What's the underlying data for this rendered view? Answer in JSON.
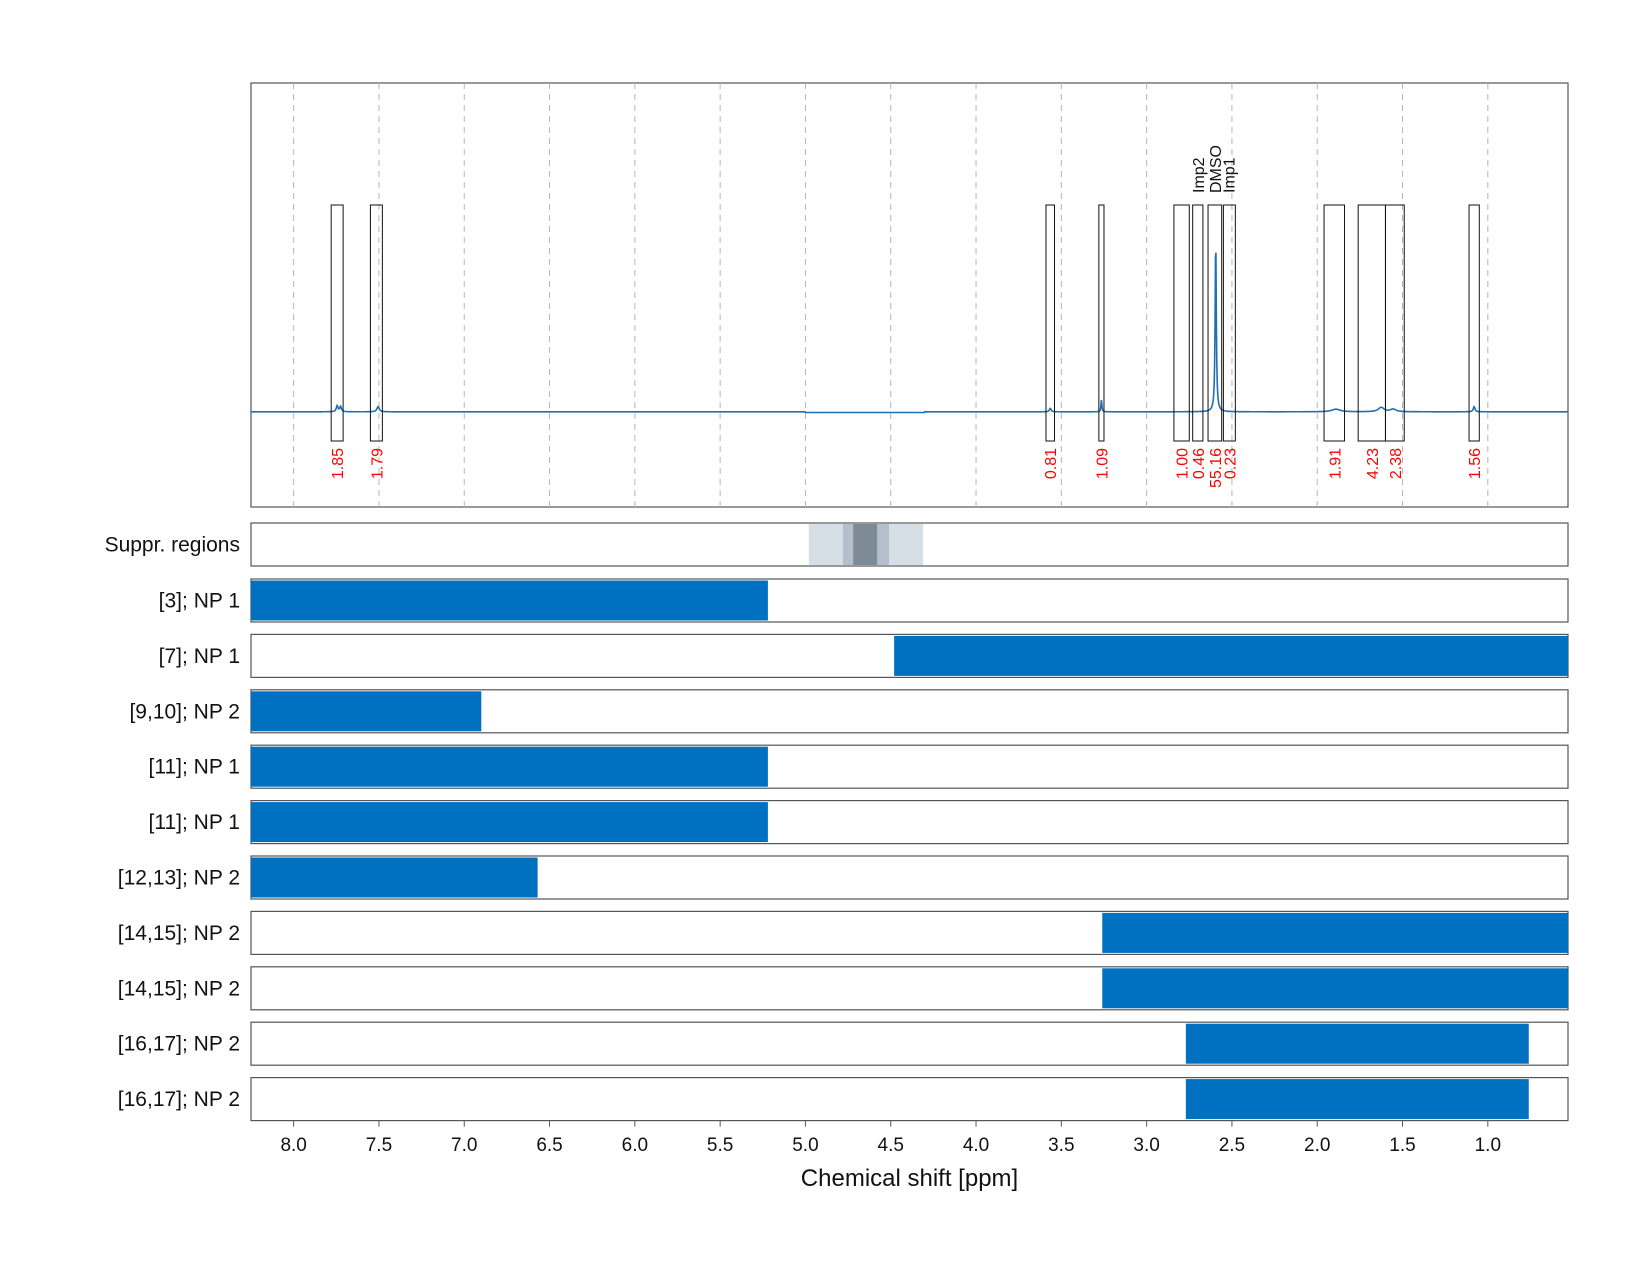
{
  "chart_data": {
    "type": "nmr-spectrum-with-region-bars",
    "xlabel": "Chemical shift [ppm]",
    "xlim": [
      8.25,
      0.53
    ],
    "x_ticks": [
      8.0,
      7.5,
      7.0,
      6.5,
      6.0,
      5.5,
      5.0,
      4.5,
      4.0,
      3.5,
      3.0,
      2.5,
      2.0,
      1.5,
      1.0
    ],
    "x_tick_labels": [
      "8.0",
      "7.5",
      "7.0",
      "6.5",
      "6.0",
      "5.5",
      "5.0",
      "4.5",
      "4.0",
      "3.5",
      "3.0",
      "2.5",
      "2.0",
      "1.5",
      "1.0"
    ],
    "grid": "vertical dashed",
    "colors": {
      "spectrum": "#1f6fb4",
      "integral_label": "#ff0000",
      "bar": "#0070c0",
      "suppression": "#d6dee6",
      "suppression_mid": "#b3c0cc",
      "suppression_core": "#7d8b97"
    },
    "spectrum": {
      "baseline": 0.0,
      "ylim": [
        -0.55,
        1.9
      ],
      "peaks": [
        {
          "ppm": 7.745,
          "height": 0.035,
          "width": 0.006
        },
        {
          "ppm": 7.725,
          "height": 0.03,
          "width": 0.006
        },
        {
          "ppm": 7.505,
          "height": 0.03,
          "width": 0.008
        },
        {
          "ppm": 3.565,
          "height": 0.02,
          "width": 0.006
        },
        {
          "ppm": 3.265,
          "height": 0.07,
          "width": 0.003
        },
        {
          "ppm": 2.595,
          "height": 1.0,
          "width": 0.004
        },
        {
          "ppm": 1.89,
          "height": 0.015,
          "width": 0.03
        },
        {
          "ppm": 1.625,
          "height": 0.025,
          "width": 0.02
        },
        {
          "ppm": 1.555,
          "height": 0.015,
          "width": 0.02
        },
        {
          "ppm": 1.08,
          "height": 0.03,
          "width": 0.006
        }
      ]
    },
    "integral_regions": [
      {
        "start": 7.78,
        "end": 7.71,
        "value": "1.85"
      },
      {
        "start": 7.55,
        "end": 7.48,
        "value": "1.79"
      },
      {
        "start": 3.59,
        "end": 3.54,
        "value": "0.81"
      },
      {
        "start": 3.28,
        "end": 3.25,
        "value": "1.09"
      },
      {
        "start": 2.84,
        "end": 2.75,
        "value": "1.00"
      },
      {
        "start": 2.73,
        "end": 2.67,
        "value": "0.46"
      },
      {
        "start": 2.64,
        "end": 2.56,
        "value": "55.16",
        "label": "DMSO"
      },
      {
        "start": 2.55,
        "end": 2.48,
        "value": "0.23",
        "label": "Imp1"
      },
      {
        "start": 1.96,
        "end": 1.84,
        "value": "1.91"
      },
      {
        "start": 1.76,
        "end": 1.6,
        "value": "4.23"
      },
      {
        "start": 1.6,
        "end": 1.49,
        "value": "2.38"
      },
      {
        "start": 1.11,
        "end": 1.05,
        "value": "1.56"
      }
    ],
    "peak_labels": [
      {
        "ppm": 2.7,
        "label": "Imp2"
      },
      {
        "ppm": 2.6,
        "label": "DMSO"
      },
      {
        "ppm": 2.52,
        "label": "Imp1"
      }
    ],
    "suppression": {
      "label": "Suppr. regions",
      "bands": [
        {
          "start": 4.98,
          "end": 4.31,
          "level": 1
        },
        {
          "start": 4.78,
          "end": 4.51,
          "level": 2
        },
        {
          "start": 4.72,
          "end": 4.58,
          "level": 3
        }
      ]
    },
    "bars": [
      {
        "label": "[3]; NP 1",
        "start": 8.25,
        "end": 5.22
      },
      {
        "label": "[7]; NP 1",
        "start": 4.48,
        "end": 0.53
      },
      {
        "label": "[9,10]; NP 2",
        "start": 8.25,
        "end": 6.9
      },
      {
        "label": "[11]; NP 1",
        "start": 8.25,
        "end": 5.22
      },
      {
        "label": "[11]; NP 1",
        "start": 8.25,
        "end": 5.22
      },
      {
        "label": "[12,13]; NP 2",
        "start": 8.25,
        "end": 6.57
      },
      {
        "label": "[14,15]; NP 2",
        "start": 3.26,
        "end": 0.53
      },
      {
        "label": "[14,15]; NP 2",
        "start": 3.26,
        "end": 0.53
      },
      {
        "label": "[16,17]; NP 2",
        "start": 2.77,
        "end": 0.76
      },
      {
        "label": "[16,17]; NP 2",
        "start": 2.77,
        "end": 0.76
      }
    ]
  }
}
